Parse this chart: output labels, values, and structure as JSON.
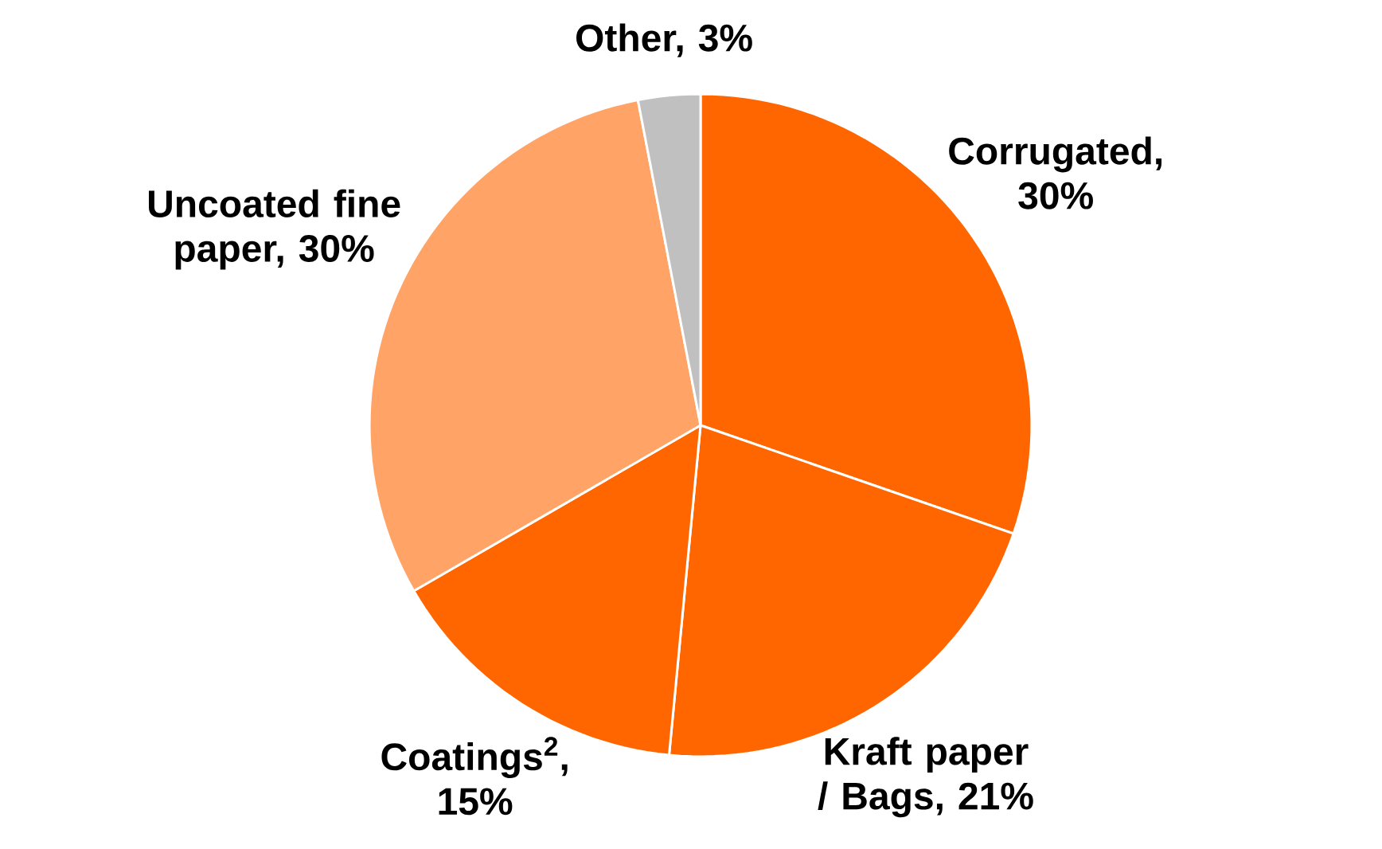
{
  "chart_data": {
    "type": "pie",
    "categories": [
      "Corrugated, 30%",
      "Kraft paper / Bags, 21%",
      "Coatings$^{2}$, 15%",
      "Uncoated fine paper, 30%",
      "Other, 3%"
    ],
    "values": [
      30,
      21,
      15,
      30,
      3
    ],
    "colors": [
      "#ff6600",
      "#ff6600",
      "#ff6600",
      "#ffa366",
      "#c0c0c0"
    ]
  }
}
